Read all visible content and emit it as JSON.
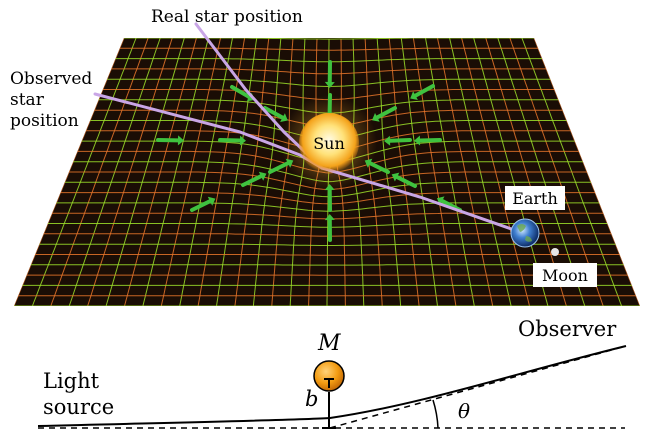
{
  "labels": {
    "real_star": "Real star position",
    "observed_star_line1": "Observed",
    "observed_star_line2": "star",
    "observed_star_line3": "position",
    "sun": "Sun",
    "earth": "Earth",
    "moon": "Moon",
    "observer": "Observer",
    "light_source_line1": "Light",
    "light_source_line2": "source",
    "mass": "M",
    "impact": "b",
    "angle": "θ"
  },
  "colors": {
    "grid_orange": "#e8752a",
    "grid_green": "#9ee02a",
    "background_sheet": "#1a0d05",
    "ray": "#c9a6e6",
    "arrow": "#3fc23f",
    "sun_core": "#fff6c8",
    "sun_edge": "#f4a21a",
    "mass_fill": "#f39c12"
  },
  "icons": {
    "sun": "sun-glow",
    "earth": "earth-globe",
    "moon": "moon-dot",
    "mass": "mass-ball"
  }
}
